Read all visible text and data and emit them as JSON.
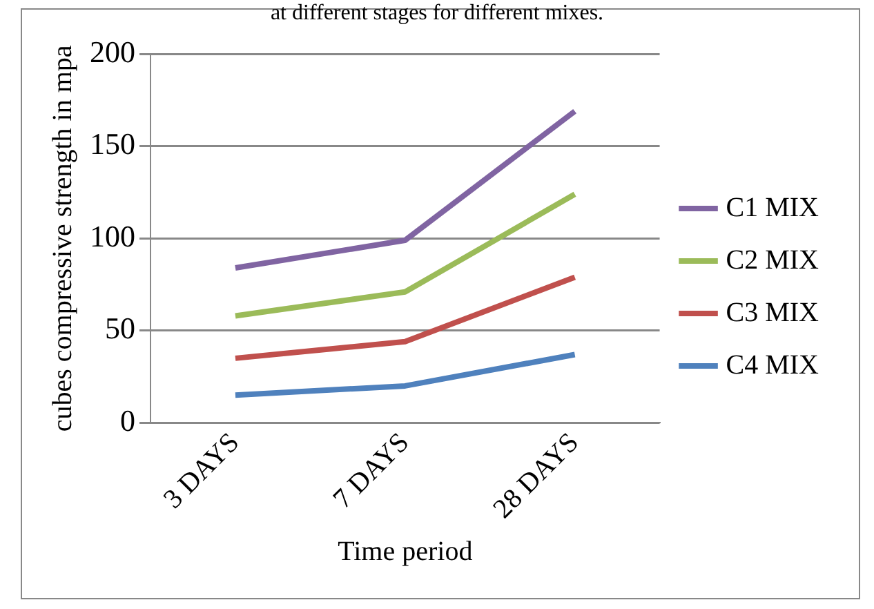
{
  "chart_data": {
    "type": "line",
    "title": "at different stages for different mixes.",
    "xlabel": "Time period",
    "ylabel": "cubes compressive strength in mpa",
    "categories": [
      "3 DAYS",
      "7 DAYS",
      "28 DAYS"
    ],
    "series": [
      {
        "name": "C1 MIX",
        "color": "#8064a2",
        "values": [
          84,
          99,
          169
        ]
      },
      {
        "name": "C2 MIX",
        "color": "#9bbb59",
        "values": [
          58,
          71,
          124
        ]
      },
      {
        "name": "C3 MIX",
        "color": "#c0504d",
        "values": [
          35,
          44,
          79
        ]
      },
      {
        "name": "C4 MIX",
        "color": "#4f81bd",
        "values": [
          15,
          20,
          37
        ]
      }
    ],
    "ylim": [
      0,
      200
    ],
    "yticks": [
      0,
      50,
      100,
      150,
      200
    ],
    "grid": "y",
    "legend": "right",
    "marker": "none",
    "line_style": "solid"
  }
}
